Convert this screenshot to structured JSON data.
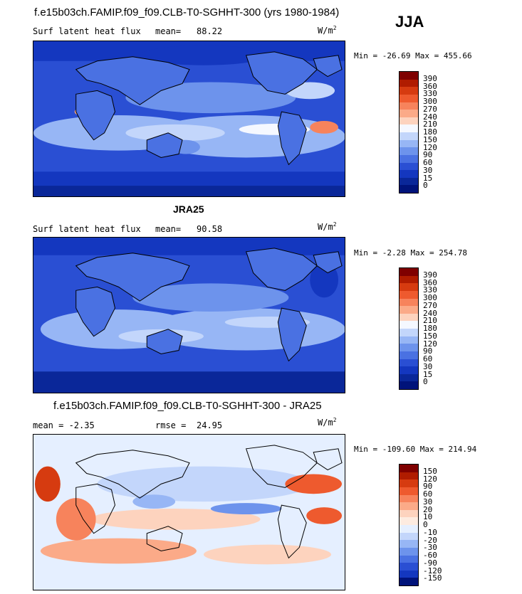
{
  "season": "JJA",
  "unit_prefix": "W/m",
  "unit_exp": "2",
  "panels": [
    {
      "title": "f.e15b03ch.FAMIP.f09_f09.CLB-T0-SGHHT-300 (yrs 1980-1984)",
      "left_label": "Surf latent heat flux",
      "stat_label": "mean=",
      "stat_value": "88.22",
      "minmax": "Min = -26.69 Max = 455.66",
      "colorbar_levels": [
        "390",
        "360",
        "330",
        "300",
        "270",
        "240",
        "210",
        "180",
        "150",
        "120",
        "90",
        "60",
        "30",
        "15",
        "0"
      ],
      "palette": "sequential"
    },
    {
      "title": "JRA25",
      "left_label": "Surf latent heat flux",
      "stat_label": "mean=",
      "stat_value": "90.58",
      "minmax": "Min =  -2.28 Max = 254.78",
      "colorbar_levels": [
        "390",
        "360",
        "330",
        "300",
        "270",
        "240",
        "210",
        "180",
        "150",
        "120",
        "90",
        "60",
        "30",
        "15",
        "0"
      ],
      "palette": "sequential"
    },
    {
      "title": "f.e15b03ch.FAMIP.f09_f09.CLB-T0-SGHHT-300 - JRA25",
      "left_label": "mean =  -2.35",
      "stat_label": "rmse =",
      "stat_value": "24.95",
      "minmax": "Min = -109.60 Max = 214.94",
      "colorbar_levels": [
        "150",
        "120",
        "90",
        "60",
        "30",
        "20",
        "10",
        "0",
        "-10",
        "-20",
        "-30",
        "-60",
        "-90",
        "-120",
        "-150"
      ],
      "palette": "diverging"
    }
  ],
  "colors": {
    "sequential": [
      "#7f0000",
      "#b01c00",
      "#d63b10",
      "#ee5a2e",
      "#f7835c",
      "#fbaa88",
      "#fdd3be",
      "#f5f8ff",
      "#c3d6fb",
      "#97b6f5",
      "#6d93ec",
      "#4a71e2",
      "#2a4fd3",
      "#1437bf",
      "#0a2799",
      "#00137a"
    ],
    "diverging": [
      "#7f0000",
      "#b01c00",
      "#d63b10",
      "#ee5a2e",
      "#f7835c",
      "#fbaa88",
      "#fdd3be",
      "#fdebe0",
      "#e5efff",
      "#c3d6fb",
      "#97b6f5",
      "#6d93ec",
      "#4a71e2",
      "#2a4fd3",
      "#1437bf",
      "#00137a"
    ]
  }
}
